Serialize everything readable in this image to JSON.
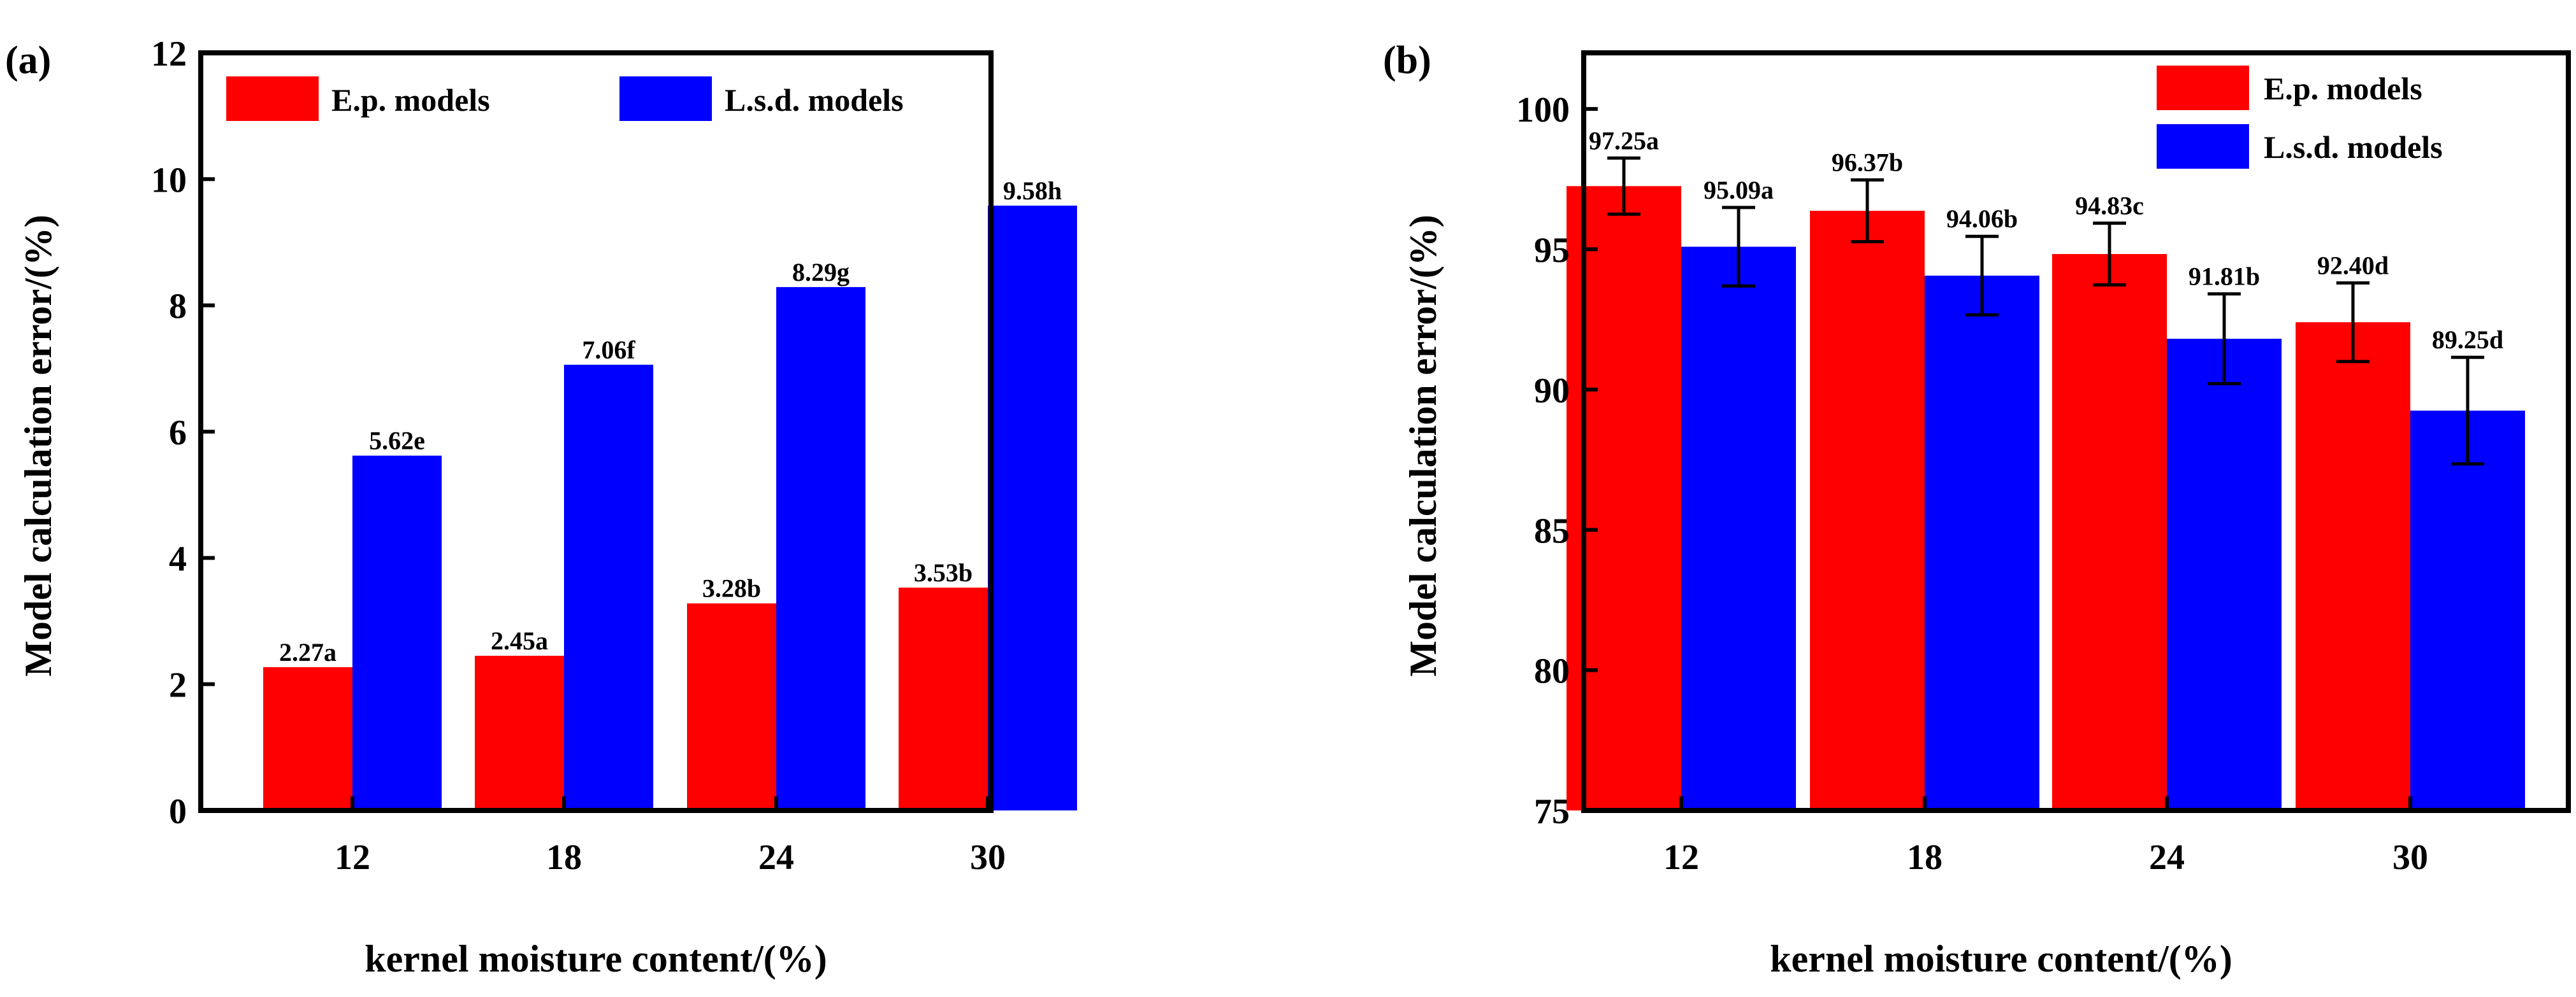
{
  "chart_data": [
    {
      "type": "bar",
      "panel_label": "(a)",
      "categories": [
        "12",
        "18",
        "24",
        "30"
      ],
      "series": [
        {
          "name": "E.p. models",
          "color": "#ff0000",
          "values": [
            2.27,
            2.45,
            3.28,
            3.53
          ],
          "labels": [
            "2.27a",
            "2.45a",
            "3.28b",
            "3.53b"
          ]
        },
        {
          "name": "L.s.d. models",
          "color": "#0000ff",
          "values": [
            5.62,
            7.06,
            8.29,
            9.58
          ],
          "labels": [
            "5.62e",
            "7.06f",
            "8.29g",
            "9.58h"
          ]
        }
      ],
      "xlabel": "kernel moisture content/(%)",
      "ylabel": "Model calculation error/(%)",
      "ylim": [
        0,
        12
      ],
      "yticks": [
        "0",
        "2",
        "4",
        "6",
        "8",
        "10",
        "12"
      ],
      "legend": "top"
    },
    {
      "type": "bar",
      "panel_label": "(b)",
      "categories": [
        "12",
        "18",
        "24",
        "30"
      ],
      "series": [
        {
          "name": "E.p. models",
          "color": "#ff0000",
          "values": [
            97.25,
            96.37,
            94.83,
            92.4
          ],
          "errors": [
            1.0,
            1.1,
            1.1,
            1.4
          ],
          "labels": [
            "97.25a",
            "96.37b",
            "94.83c",
            "92.40d"
          ]
        },
        {
          "name": "L.s.d. models",
          "color": "#0000ff",
          "values": [
            95.09,
            94.06,
            91.81,
            89.25
          ],
          "errors": [
            1.4,
            1.4,
            1.6,
            1.9
          ],
          "labels": [
            "95.09a",
            "94.06b",
            "91.81b",
            "89.25d"
          ]
        }
      ],
      "xlabel": "kernel moisture content/(%)",
      "ylabel": "Model calculation error/(%)",
      "ylim": [
        75,
        102
      ],
      "yticks": [
        "75",
        "80",
        "85",
        "90",
        "95",
        "100"
      ],
      "legend": "top-right"
    }
  ]
}
